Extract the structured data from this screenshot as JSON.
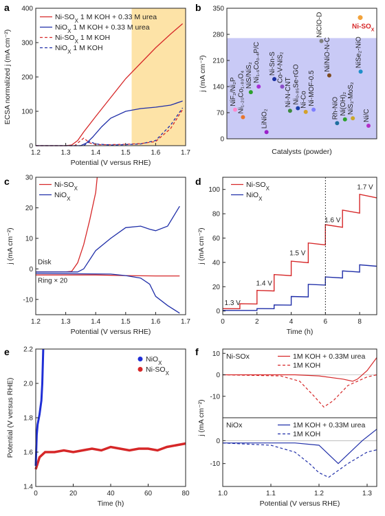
{
  "chart_data": [
    {
      "panel": "a",
      "type": "line",
      "xlabel": "Potential (V versus RHE)",
      "ylabel": "ECSA normalized j (mA cm⁻²)",
      "xlim": [
        1.2,
        1.7
      ],
      "ylim": [
        0,
        400
      ],
      "xticks": [
        "1.2",
        "1.3",
        "1.4",
        "1.5",
        "1.6",
        "1.7"
      ],
      "yticks": [
        "0",
        "100",
        "200",
        "300",
        "400"
      ],
      "highlight_region": [
        1.52,
        1.7
      ],
      "legend_placement": "top-left",
      "series": [
        {
          "name": "Ni-SOx 1 M KOH + 0.33 M urea",
          "color": "#d62728",
          "style": "solid",
          "x": [
            1.2,
            1.3,
            1.32,
            1.34,
            1.36,
            1.4,
            1.45,
            1.5,
            1.55,
            1.6,
            1.65,
            1.69
          ],
          "y": [
            0,
            0,
            2,
            15,
            40,
            85,
            140,
            195,
            240,
            285,
            325,
            355
          ]
        },
        {
          "name": "NiOx 1 M KOH + 0.33 M urea",
          "color": "#1f2ea8",
          "style": "solid",
          "x": [
            1.2,
            1.35,
            1.37,
            1.39,
            1.42,
            1.45,
            1.5,
            1.55,
            1.6,
            1.65,
            1.69
          ],
          "y": [
            0,
            0,
            8,
            25,
            55,
            80,
            100,
            108,
            112,
            118,
            130
          ]
        },
        {
          "name": "Ni-SOx 1 M KOH",
          "color": "#d62728",
          "style": "dashed",
          "x": [
            1.2,
            1.33,
            1.35,
            1.36,
            1.38,
            1.4,
            1.45,
            1.5,
            1.55,
            1.6,
            1.65,
            1.69
          ],
          "y": [
            0,
            0,
            15,
            22,
            8,
            3,
            3,
            4,
            6,
            12,
            50,
            105
          ]
        },
        {
          "name": "NiOx 1 M KOH",
          "color": "#1f2ea8",
          "style": "dashed",
          "x": [
            1.2,
            1.36,
            1.38,
            1.4,
            1.45,
            1.5,
            1.55,
            1.6,
            1.65,
            1.69
          ],
          "y": [
            0,
            0,
            12,
            5,
            2,
            3,
            5,
            15,
            60,
            110
          ]
        }
      ]
    },
    {
      "panel": "b",
      "type": "scatter",
      "xlabel": "Catalysts (powder)",
      "ylabel": "j (mA cm⁻²)",
      "ylim": [
        0,
        350
      ],
      "yticks": [
        "0",
        "70",
        "140",
        "210",
        "280",
        "350"
      ],
      "band_top": 270,
      "points": [
        {
          "label": "Ni-SOx",
          "value": 325,
          "color": "#f2a23a",
          "highlight": true
        },
        {
          "label": "NiF₂/Ni₂P",
          "value": 78,
          "color": "#ff88cc"
        },
        {
          "label": "Ni₁.₂₀Co₁.₈₀O₄",
          "value": 58,
          "color": "#e8762d"
        },
        {
          "label": "NiS/NiS₂",
          "value": 125,
          "color": "#2ca02c"
        },
        {
          "label": "Ni₁.₆Co₀.₄P/C",
          "value": 140,
          "color": "#a62fd6"
        },
        {
          "label": "LiNiO₂",
          "value": 18,
          "color": "#9b1fc9"
        },
        {
          "label": "Ni-Sn-S",
          "value": 160,
          "color": "#1a2fa0"
        },
        {
          "label": "Co-V-NiS₂",
          "value": 140,
          "color": "#8a4fc7"
        },
        {
          "label": "Ni-N-CNT",
          "value": 75,
          "color": "#3d8a3d"
        },
        {
          "label": "Ni₀.₈₅Se-rGO",
          "value": 82,
          "color": "#1a3fa8"
        },
        {
          "label": "Ni-Co",
          "value": 72,
          "color": "#d4a12a"
        },
        {
          "label": "Ni-MOF-0.5",
          "value": 78,
          "color": "#7f7fff"
        },
        {
          "label": "NiClO-D",
          "value": 262,
          "color": "#7f7f7f"
        },
        {
          "label": "Ni/NiO-N-C",
          "value": 170,
          "color": "#7d4a1f"
        },
        {
          "label": "Rh-NiO",
          "value": 42,
          "color": "#1f6f9f"
        },
        {
          "label": "Ni(OH)₂",
          "value": 52,
          "color": "#2ca02c"
        },
        {
          "label": "NiS₂-MoS₂",
          "value": 55,
          "color": "#c9a62c"
        },
        {
          "label": "NiSe₂-NiO",
          "value": 180,
          "color": "#1f8fc9"
        },
        {
          "label": "Ni/C",
          "value": 35,
          "color": "#b32fc7"
        }
      ]
    },
    {
      "panel": "c",
      "type": "line",
      "xlabel": "Potential (V versus RHE)",
      "ylabel": "j (mA cm⁻²)",
      "xlim": [
        1.2,
        1.7
      ],
      "ylim": [
        -15,
        30
      ],
      "xticks": [
        "1.2",
        "1.3",
        "1.4",
        "1.5",
        "1.6",
        "1.7"
      ],
      "yticks": [
        "-10",
        "0",
        "10",
        "20",
        "30"
      ],
      "annotations": [
        "Disk",
        "Ring × 20"
      ],
      "series": [
        {
          "name": "Ni-SOx",
          "color": "#d62728",
          "x": [
            1.2,
            1.3,
            1.32,
            1.34,
            1.36,
            1.38,
            1.4,
            1.405
          ],
          "y": [
            -1,
            -1,
            -0.8,
            2,
            8,
            16,
            25,
            30
          ]
        },
        {
          "name": "NiOx",
          "color": "#1f2ea8",
          "x": [
            1.2,
            1.34,
            1.36,
            1.38,
            1.4,
            1.45,
            1.5,
            1.55,
            1.58,
            1.6,
            1.64,
            1.68
          ],
          "y": [
            -1,
            -1,
            0,
            3,
            6,
            10,
            13.5,
            14,
            13,
            12.5,
            14,
            20.5
          ]
        },
        {
          "name": "Ni-SOx ring",
          "color": "#d62728",
          "x": [
            1.2,
            1.4,
            1.5,
            1.6,
            1.68
          ],
          "y": [
            -2,
            -2,
            -2.2,
            -2.3,
            -2.3
          ]
        },
        {
          "name": "NiOx ring",
          "color": "#1f2ea8",
          "x": [
            1.2,
            1.45,
            1.5,
            1.55,
            1.58,
            1.6,
            1.64,
            1.68
          ],
          "y": [
            -1.5,
            -1.7,
            -2.2,
            -3,
            -5,
            -9,
            -12,
            -14.5
          ]
        }
      ]
    },
    {
      "panel": "d",
      "type": "line",
      "xlabel": "Time (h)",
      "ylabel": "j (mA cm⁻²)",
      "xlim": [
        0,
        9
      ],
      "ylim": [
        -3,
        110
      ],
      "xticks": [
        "0",
        "2",
        "4",
        "6",
        "8"
      ],
      "yticks": [
        "0",
        "20",
        "40",
        "60",
        "80",
        "100"
      ],
      "vline_x": 6,
      "step_labels": [
        {
          "text": "1.3 V",
          "x": 0.1,
          "y": 5
        },
        {
          "text": "1.4 V",
          "x": 1.95,
          "y": 21
        },
        {
          "text": "1.5 V",
          "x": 3.9,
          "y": 46
        },
        {
          "text": "1.6 V",
          "x": 5.95,
          "y": 73
        },
        {
          "text": "1.7 V",
          "x": 7.85,
          "y": 100
        }
      ],
      "series": [
        {
          "name": "Ni-SOx",
          "color": "#d62728",
          "steps": [
            [
              0,
              1,
              2
            ],
            [
              1,
              2,
              6
            ],
            [
              2,
              3,
              17
            ],
            [
              3,
              4,
              30
            ],
            [
              4,
              5,
              41
            ],
            [
              5,
              6,
              56
            ],
            [
              6,
              7,
              71
            ],
            [
              7,
              8,
              83
            ],
            [
              8,
              9,
              96
            ]
          ]
        },
        {
          "name": "NiOx",
          "color": "#1f2ea8",
          "steps": [
            [
              0,
              1,
              0.5
            ],
            [
              1,
              2,
              0.5
            ],
            [
              2,
              3,
              2
            ],
            [
              3,
              4,
              5
            ],
            [
              4,
              5,
              12
            ],
            [
              5,
              6,
              22
            ],
            [
              6,
              7,
              28
            ],
            [
              7,
              8,
              33
            ],
            [
              8,
              9,
              38
            ]
          ]
        }
      ]
    },
    {
      "panel": "e",
      "type": "line",
      "xlabel": "Time (h)",
      "ylabel": "Potential (V versus RHE)",
      "xlim": [
        0,
        80
      ],
      "ylim": [
        1.4,
        2.2
      ],
      "xticks": [
        "0",
        "20",
        "40",
        "60",
        "80"
      ],
      "yticks": [
        "1.4",
        "1.6",
        "1.8",
        "2.0",
        "2.2"
      ],
      "series": [
        {
          "name": "NiOx",
          "color": "#1f2ed6",
          "x": [
            0,
            0.5,
            1,
            2,
            3,
            3.5,
            4
          ],
          "y": [
            1.52,
            1.7,
            1.76,
            1.82,
            1.9,
            2.0,
            2.2
          ]
        },
        {
          "name": "Ni-SOx",
          "color": "#d62728",
          "x": [
            0,
            2,
            5,
            10,
            15,
            20,
            25,
            30,
            35,
            40,
            45,
            50,
            55,
            60,
            65,
            70,
            75,
            80
          ],
          "y": [
            1.5,
            1.57,
            1.6,
            1.6,
            1.61,
            1.6,
            1.61,
            1.62,
            1.61,
            1.63,
            1.62,
            1.61,
            1.62,
            1.62,
            1.61,
            1.63,
            1.64,
            1.65
          ]
        }
      ]
    },
    {
      "panel": "f",
      "type": "line",
      "xlabel": "Potential (V versus RHE)",
      "ylabel": "j (mA cm⁻²)",
      "xlim": [
        1.0,
        1.32
      ],
      "xticks": [
        "1.0",
        "1.1",
        "1.2",
        "1.3"
      ],
      "subplots": [
        {
          "title": "Ni-SOx",
          "ylim": [
            -20,
            12
          ],
          "yticks": [
            "-10",
            "0",
            "10"
          ],
          "series": [
            {
              "name": "1M KOH + 0.33M urea",
              "color": "#d62728",
              "style": "solid",
              "x": [
                1.0,
                1.15,
                1.2,
                1.25,
                1.27,
                1.28,
                1.3,
                1.32
              ],
              "y": [
                0,
                0,
                -0.5,
                -2,
                -3,
                -2,
                2,
                8
              ]
            },
            {
              "name": "1M KOH",
              "color": "#d62728",
              "style": "dashed",
              "x": [
                1.0,
                1.12,
                1.16,
                1.19,
                1.21,
                1.23,
                1.26,
                1.3,
                1.32
              ],
              "y": [
                0,
                -0.5,
                -3,
                -10,
                -15,
                -12,
                -5,
                -1,
                0
              ]
            }
          ]
        },
        {
          "title": "NiOx",
          "ylim": [
            -20,
            10
          ],
          "yticks": [
            "-10",
            "0"
          ],
          "series": [
            {
              "name": "1M KOH + 0.33M urea",
              "color": "#1f2ea8",
              "style": "solid",
              "x": [
                1.0,
                1.15,
                1.2,
                1.22,
                1.24,
                1.26,
                1.29,
                1.32
              ],
              "y": [
                -1,
                -1,
                -2,
                -6,
                -10,
                -6,
                0,
                5
              ]
            },
            {
              "name": "1M KOH",
              "color": "#1f2ea8",
              "style": "dashed",
              "x": [
                1.0,
                1.1,
                1.15,
                1.18,
                1.2,
                1.22,
                1.26,
                1.3,
                1.32
              ],
              "y": [
                -1,
                -2,
                -5,
                -10,
                -14,
                -16,
                -10,
                -5,
                -4
              ]
            }
          ]
        }
      ]
    }
  ]
}
